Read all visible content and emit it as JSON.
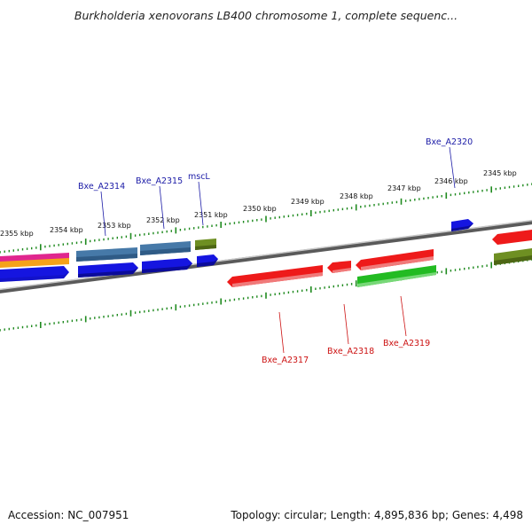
{
  "header": {
    "title": "Burkholderia xenovorans LB400 chromosome 1, complete sequenc..."
  },
  "footer": {
    "accession": "Accession: NC_007951",
    "summary": "Topology: circular; Length: 4,895,836 bp; Genes: 4,498"
  },
  "colors": {
    "backbone": "#7a7a7a",
    "ticks": "#1f8a1f",
    "label_top": "#1a1aa6",
    "label_bottom": "#cc1111"
  },
  "kbp_labels": [
    "2355 kbp",
    "2354 kbp",
    "2353 kbp",
    "2352 kbp",
    "2351 kbp",
    "2350 kbp",
    "2349 kbp",
    "2348 kbp",
    "2347 kbp",
    "2346 kbp",
    "2345 kbp"
  ],
  "gene_labels_top": [
    "Bxe_A2314",
    "Bxe_A2315",
    "mscL",
    "Bxe_A2320"
  ],
  "gene_labels_bottom": [
    "Bxe_A2317",
    "Bxe_A2318",
    "Bxe_A2319"
  ]
}
